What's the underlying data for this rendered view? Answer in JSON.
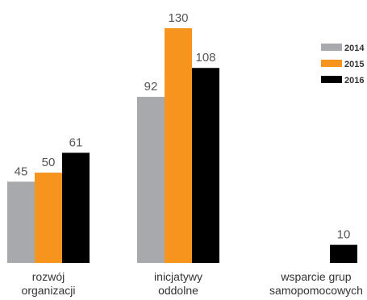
{
  "chart_data": {
    "type": "bar",
    "categories": [
      [
        "rozwój",
        "organizacji"
      ],
      [
        "inicjatywy",
        "oddolne"
      ],
      [
        "wsparcie grup",
        "samopomocowych"
      ]
    ],
    "series": [
      {
        "name": "2014",
        "color": "#a7a9ac",
        "values": [
          45,
          92,
          null
        ]
      },
      {
        "name": "2015",
        "color": "#f7941d",
        "values": [
          50,
          130,
          null
        ]
      },
      {
        "name": "2016",
        "color": "#000000",
        "values": [
          61,
          108,
          10
        ]
      }
    ],
    "title": "",
    "xlabel": "",
    "ylabel": "",
    "ylim": [
      0,
      130
    ],
    "grid": false,
    "legend": "right"
  }
}
